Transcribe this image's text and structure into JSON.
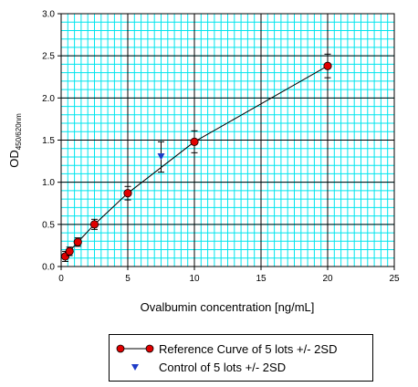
{
  "chart_data": {
    "type": "line",
    "title": "",
    "xlabel": "Ovalbumin concentration [ng/mL]",
    "ylabel_main": "OD",
    "ylabel_sub": "450/620nm",
    "xlim": [
      0,
      25
    ],
    "ylim": [
      0,
      3.0
    ],
    "x_ticks": [
      0,
      5,
      10,
      15,
      20,
      25
    ],
    "y_ticks": [
      0.0,
      0.5,
      1.0,
      1.5,
      2.0,
      2.5,
      3.0
    ],
    "x_tick_labels": [
      "0",
      "5",
      "10",
      "15",
      "20",
      "25"
    ],
    "y_tick_labels": [
      "0.0",
      "0.5",
      "1.0",
      "1.5",
      "2.0",
      "2.5",
      "3.0"
    ],
    "grid": true,
    "grid_minor_x_step": 0.5,
    "grid_minor_y_step": 0.1,
    "colors": {
      "minor_grid": "#00e5ee",
      "major_grid": "#000000",
      "reference": "#e00000",
      "control": "#1e3cc8"
    },
    "series": [
      {
        "name": "Reference Curve of 5 lots +/- 2SD",
        "kind": "line-marker",
        "x": [
          0.31,
          0.63,
          1.25,
          2.5,
          5,
          10,
          20
        ],
        "y": [
          0.12,
          0.18,
          0.29,
          0.5,
          0.87,
          1.48,
          2.38
        ],
        "err": [
          0.06,
          0.05,
          0.05,
          0.06,
          0.08,
          0.13,
          0.14
        ]
      },
      {
        "name": "Control of 5 lots +/- 2SD",
        "kind": "marker",
        "x": [
          7.5
        ],
        "y": [
          1.3
        ],
        "err": [
          0.18
        ]
      }
    ],
    "legend_position": "bottom"
  }
}
